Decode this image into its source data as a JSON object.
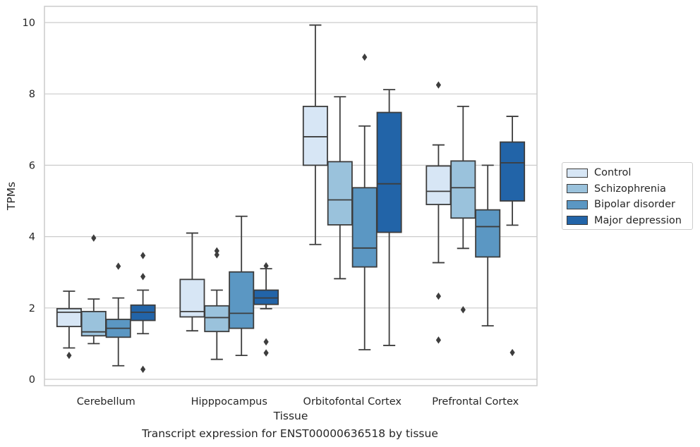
{
  "caption": "Transcript expression for ENST00000636518 by tissue",
  "chart_data": {
    "type": "box",
    "xlabel": "Tissue",
    "ylabel": "TPMs",
    "ylim": [
      -0.2,
      10.45
    ],
    "yticks": [
      0,
      2,
      4,
      6,
      8,
      10
    ],
    "grid": true,
    "legend_placement": "outside-right",
    "categories": [
      "Cerebellum",
      "Hipppocampus",
      "Orbitofontal Cortex",
      "Prefrontal Cortex"
    ],
    "series": [
      {
        "name": "Control",
        "color": "#d7e6f5",
        "boxes": [
          {
            "whisker_low": 0.88,
            "q1": 1.48,
            "median": 1.88,
            "q3": 1.98,
            "whisker_high": 2.47,
            "outliers": [
              0.67
            ]
          },
          {
            "whisker_low": 1.36,
            "q1": 1.75,
            "median": 1.9,
            "q3": 2.8,
            "whisker_high": 4.1,
            "outliers": []
          },
          {
            "whisker_low": 3.78,
            "q1": 6.0,
            "median": 6.8,
            "q3": 7.65,
            "whisker_high": 9.93,
            "outliers": []
          },
          {
            "whisker_low": 3.27,
            "q1": 4.9,
            "median": 5.27,
            "q3": 5.98,
            "whisker_high": 6.57,
            "outliers": [
              8.25,
              2.33,
              1.1
            ]
          }
        ]
      },
      {
        "name": "Schizophrenia",
        "color": "#9ac2dc",
        "boxes": [
          {
            "whisker_low": 1.0,
            "q1": 1.22,
            "median": 1.33,
            "q3": 1.9,
            "whisker_high": 2.25,
            "outliers": [
              3.96
            ]
          },
          {
            "whisker_low": 0.56,
            "q1": 1.34,
            "median": 1.73,
            "q3": 2.06,
            "whisker_high": 2.5,
            "outliers": [
              3.6,
              3.49
            ]
          },
          {
            "whisker_low": 2.82,
            "q1": 4.33,
            "median": 5.03,
            "q3": 6.1,
            "whisker_high": 7.92,
            "outliers": []
          },
          {
            "whisker_low": 3.67,
            "q1": 4.52,
            "median": 5.37,
            "q3": 6.12,
            "whisker_high": 7.65,
            "outliers": [
              1.95
            ]
          }
        ]
      },
      {
        "name": "Bipolar disorder",
        "color": "#5b97c3",
        "boxes": [
          {
            "whisker_low": 0.38,
            "q1": 1.18,
            "median": 1.43,
            "q3": 1.68,
            "whisker_high": 2.28,
            "outliers": [
              3.17
            ]
          },
          {
            "whisker_low": 0.67,
            "q1": 1.43,
            "median": 1.85,
            "q3": 3.01,
            "whisker_high": 4.57,
            "outliers": []
          },
          {
            "whisker_low": 0.83,
            "q1": 3.15,
            "median": 3.68,
            "q3": 5.37,
            "whisker_high": 7.1,
            "outliers": [
              9.03
            ]
          },
          {
            "whisker_low": 1.5,
            "q1": 3.43,
            "median": 4.28,
            "q3": 4.75,
            "whisker_high": 6.0,
            "outliers": []
          }
        ]
      },
      {
        "name": "Major depression",
        "color": "#2264a8",
        "boxes": [
          {
            "whisker_low": 1.28,
            "q1": 1.65,
            "median": 1.88,
            "q3": 2.08,
            "whisker_high": 2.5,
            "outliers": [
              3.47,
              2.88,
              0.28
            ]
          },
          {
            "whisker_low": 1.98,
            "q1": 2.1,
            "median": 2.28,
            "q3": 2.5,
            "whisker_high": 3.1,
            "outliers": [
              3.18,
              1.05,
              0.74
            ]
          },
          {
            "whisker_low": 0.95,
            "q1": 4.12,
            "median": 5.48,
            "q3": 7.48,
            "whisker_high": 8.12,
            "outliers": []
          },
          {
            "whisker_low": 4.32,
            "q1": 5.0,
            "median": 6.07,
            "q3": 6.65,
            "whisker_high": 7.37,
            "outliers": [
              0.75
            ]
          }
        ]
      }
    ]
  }
}
